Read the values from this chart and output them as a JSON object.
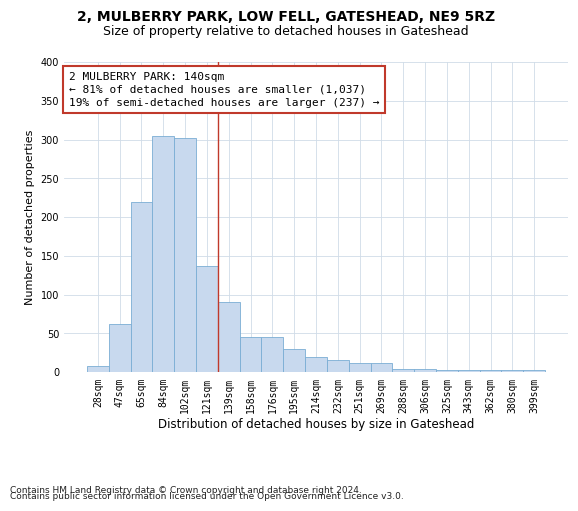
{
  "title_line1": "2, MULBERRY PARK, LOW FELL, GATESHEAD, NE9 5RZ",
  "title_line2": "Size of property relative to detached houses in Gateshead",
  "xlabel": "Distribution of detached houses by size in Gateshead",
  "ylabel": "Number of detached properties",
  "bar_labels": [
    "28sqm",
    "47sqm",
    "65sqm",
    "84sqm",
    "102sqm",
    "121sqm",
    "139sqm",
    "158sqm",
    "176sqm",
    "195sqm",
    "214sqm",
    "232sqm",
    "251sqm",
    "269sqm",
    "288sqm",
    "306sqm",
    "325sqm",
    "343sqm",
    "362sqm",
    "380sqm",
    "399sqm"
  ],
  "bar_values": [
    8,
    62,
    220,
    305,
    302,
    137,
    90,
    45,
    45,
    30,
    20,
    15,
    12,
    11,
    4,
    4,
    2,
    2,
    2,
    2,
    3
  ],
  "bar_color": "#c8d9ee",
  "bar_edge_color": "#7aadd4",
  "vline_x": 5.5,
  "vline_color": "#c0392b",
  "annotation_line1": "2 MULBERRY PARK: 140sqm",
  "annotation_line2": "← 81% of detached houses are smaller (1,037)",
  "annotation_line3": "19% of semi-detached houses are larger (237) →",
  "annotation_box_color": "#c0392b",
  "ylim": [
    0,
    400
  ],
  "yticks": [
    0,
    50,
    100,
    150,
    200,
    250,
    300,
    350,
    400
  ],
  "footnote_line1": "Contains HM Land Registry data © Crown copyright and database right 2024.",
  "footnote_line2": "Contains public sector information licensed under the Open Government Licence v3.0.",
  "bg_color": "#ffffff",
  "grid_color": "#d0dce8",
  "title_fontsize": 10,
  "subtitle_fontsize": 9,
  "xlabel_fontsize": 8.5,
  "ylabel_fontsize": 8,
  "tick_fontsize": 7,
  "annotation_fontsize": 8,
  "footnote_fontsize": 6.5
}
